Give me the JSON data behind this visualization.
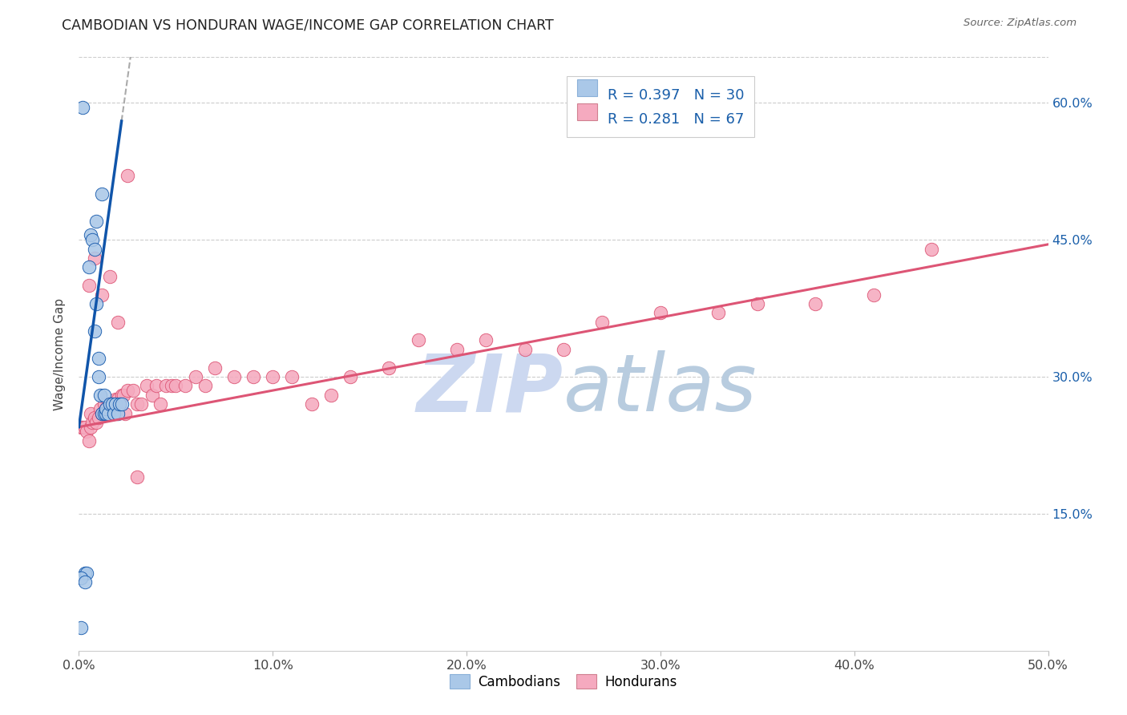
{
  "title": "CAMBODIAN VS HONDURAN WAGE/INCOME GAP CORRELATION CHART",
  "source": "Source: ZipAtlas.com",
  "ylabel": "Wage/Income Gap",
  "xlim": [
    0.0,
    0.5
  ],
  "ylim": [
    0.0,
    0.65
  ],
  "xtick_labels": [
    "0.0%",
    "10.0%",
    "20.0%",
    "30.0%",
    "40.0%",
    "50.0%"
  ],
  "xtick_vals": [
    0.0,
    0.1,
    0.2,
    0.3,
    0.4,
    0.5
  ],
  "ytick_labels": [
    "15.0%",
    "30.0%",
    "45.0%",
    "60.0%"
  ],
  "ytick_vals": [
    0.15,
    0.3,
    0.45,
    0.6
  ],
  "R_cambodian": "0.397",
  "N_cambodian": "30",
  "R_honduran": "0.281",
  "N_honduran": "67",
  "cambodian_color": "#aac8e8",
  "honduran_color": "#f5aabf",
  "trend_cambodian_color": "#1055aa",
  "trend_honduran_color": "#dd5575",
  "watermark_zip": "ZIP",
  "watermark_atlas": "atlas",
  "watermark_color_zip": "#c8d8ee",
  "watermark_color_atlas": "#b8cce0",
  "background_color": "#ffffff",
  "legend_color": "#1a5faa",
  "grid_color": "#cccccc",
  "cam_x": [
    0.001,
    0.002,
    0.003,
    0.004,
    0.005,
    0.006,
    0.007,
    0.008,
    0.008,
    0.009,
    0.009,
    0.01,
    0.01,
    0.011,
    0.012,
    0.012,
    0.013,
    0.013,
    0.014,
    0.014,
    0.015,
    0.016,
    0.017,
    0.018,
    0.019,
    0.02,
    0.021,
    0.022,
    0.001,
    0.003
  ],
  "cam_y": [
    0.025,
    0.595,
    0.085,
    0.085,
    0.42,
    0.455,
    0.45,
    0.44,
    0.35,
    0.47,
    0.38,
    0.32,
    0.3,
    0.28,
    0.26,
    0.5,
    0.28,
    0.26,
    0.26,
    0.265,
    0.26,
    0.27,
    0.27,
    0.26,
    0.27,
    0.26,
    0.27,
    0.27,
    0.08,
    0.075
  ],
  "hon_x": [
    0.001,
    0.002,
    0.003,
    0.004,
    0.005,
    0.006,
    0.006,
    0.007,
    0.008,
    0.009,
    0.01,
    0.011,
    0.012,
    0.013,
    0.014,
    0.015,
    0.016,
    0.017,
    0.018,
    0.019,
    0.02,
    0.021,
    0.022,
    0.023,
    0.024,
    0.025,
    0.028,
    0.03,
    0.032,
    0.035,
    0.038,
    0.04,
    0.042,
    0.045,
    0.048,
    0.05,
    0.055,
    0.06,
    0.065,
    0.07,
    0.08,
    0.09,
    0.1,
    0.11,
    0.12,
    0.13,
    0.14,
    0.16,
    0.175,
    0.195,
    0.21,
    0.23,
    0.25,
    0.27,
    0.3,
    0.33,
    0.35,
    0.38,
    0.41,
    0.44,
    0.005,
    0.008,
    0.012,
    0.016,
    0.02,
    0.025,
    0.03
  ],
  "hon_y": [
    0.245,
    0.245,
    0.245,
    0.24,
    0.23,
    0.245,
    0.26,
    0.25,
    0.255,
    0.25,
    0.255,
    0.265,
    0.26,
    0.27,
    0.265,
    0.27,
    0.27,
    0.27,
    0.27,
    0.275,
    0.275,
    0.27,
    0.28,
    0.28,
    0.26,
    0.285,
    0.285,
    0.27,
    0.27,
    0.29,
    0.28,
    0.29,
    0.27,
    0.29,
    0.29,
    0.29,
    0.29,
    0.3,
    0.29,
    0.31,
    0.3,
    0.3,
    0.3,
    0.3,
    0.27,
    0.28,
    0.3,
    0.31,
    0.34,
    0.33,
    0.34,
    0.33,
    0.33,
    0.36,
    0.37,
    0.37,
    0.38,
    0.38,
    0.39,
    0.44,
    0.4,
    0.43,
    0.39,
    0.41,
    0.36,
    0.52,
    0.19
  ],
  "cam_trend_x0": 0.0,
  "cam_trend_x1": 0.022,
  "hon_trend_x0": 0.0,
  "hon_trend_x1": 0.5,
  "hon_trend_y0": 0.245,
  "hon_trend_y1": 0.445,
  "cam_trend_y0": 0.245,
  "cam_trend_y1": 0.58
}
